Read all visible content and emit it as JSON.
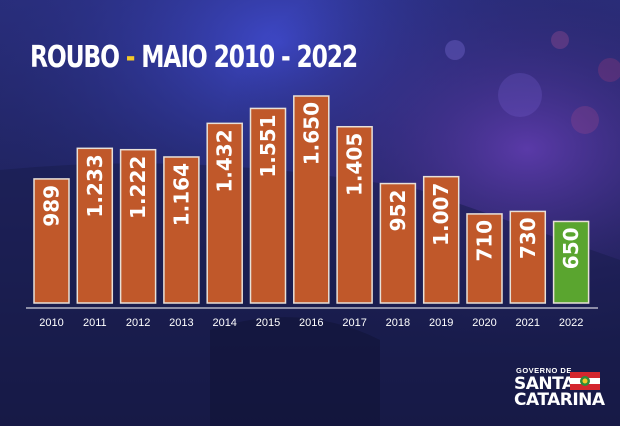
{
  "title": {
    "part1": "ROUBO",
    "separator": " - ",
    "part2": "MAIO 2010 - 2022"
  },
  "logo": {
    "line1": "GOVERNO DE",
    "line2": "SANTA",
    "line3": "CATARINA"
  },
  "colors": {
    "bar": "#c0582a",
    "bar_border": "#e8e0d8",
    "highlight": "#5aa52f",
    "title_accent": "#f4c928"
  },
  "chart_data": {
    "type": "bar",
    "categories": [
      "2010",
      "2011",
      "2012",
      "2013",
      "2014",
      "2015",
      "2016",
      "2017",
      "2018",
      "2019",
      "2020",
      "2021",
      "2022"
    ],
    "values": [
      989,
      1233,
      1222,
      1164,
      1432,
      1551,
      1650,
      1405,
      952,
      1007,
      710,
      730,
      650
    ],
    "value_labels": [
      "989",
      "1.233",
      "1.222",
      "1.164",
      "1.432",
      "1.551",
      "1.650",
      "1.405",
      "952",
      "1.007",
      "710",
      "730",
      "650"
    ],
    "highlight_category": "2022",
    "title": "ROUBO - MAIO 2010 - 2022",
    "xlabel": "",
    "ylabel": "",
    "ylim": [
      0,
      1650
    ],
    "grid": false,
    "legend": "none"
  }
}
